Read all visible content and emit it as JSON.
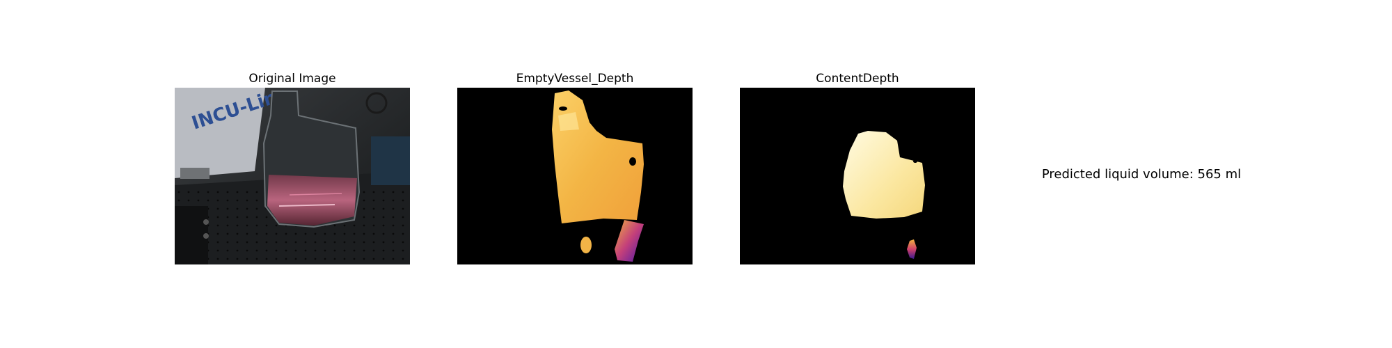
{
  "panels": {
    "original": {
      "title": "Original Image",
      "sign_text": "INCU-Line"
    },
    "empty_vessel": {
      "title": "EmptyVessel_Depth"
    },
    "content": {
      "title": "ContentDepth"
    }
  },
  "result": {
    "label": "Predicted liquid volume:",
    "value": "565",
    "unit": "ml",
    "text": "Predicted liquid volume: 565 ml"
  },
  "colors": {
    "background": "#ffffff",
    "panel_background": "#000000",
    "depth_near": "#fff8c8",
    "depth_mid": "#f6b33c",
    "depth_far": "#6a1fb0"
  }
}
